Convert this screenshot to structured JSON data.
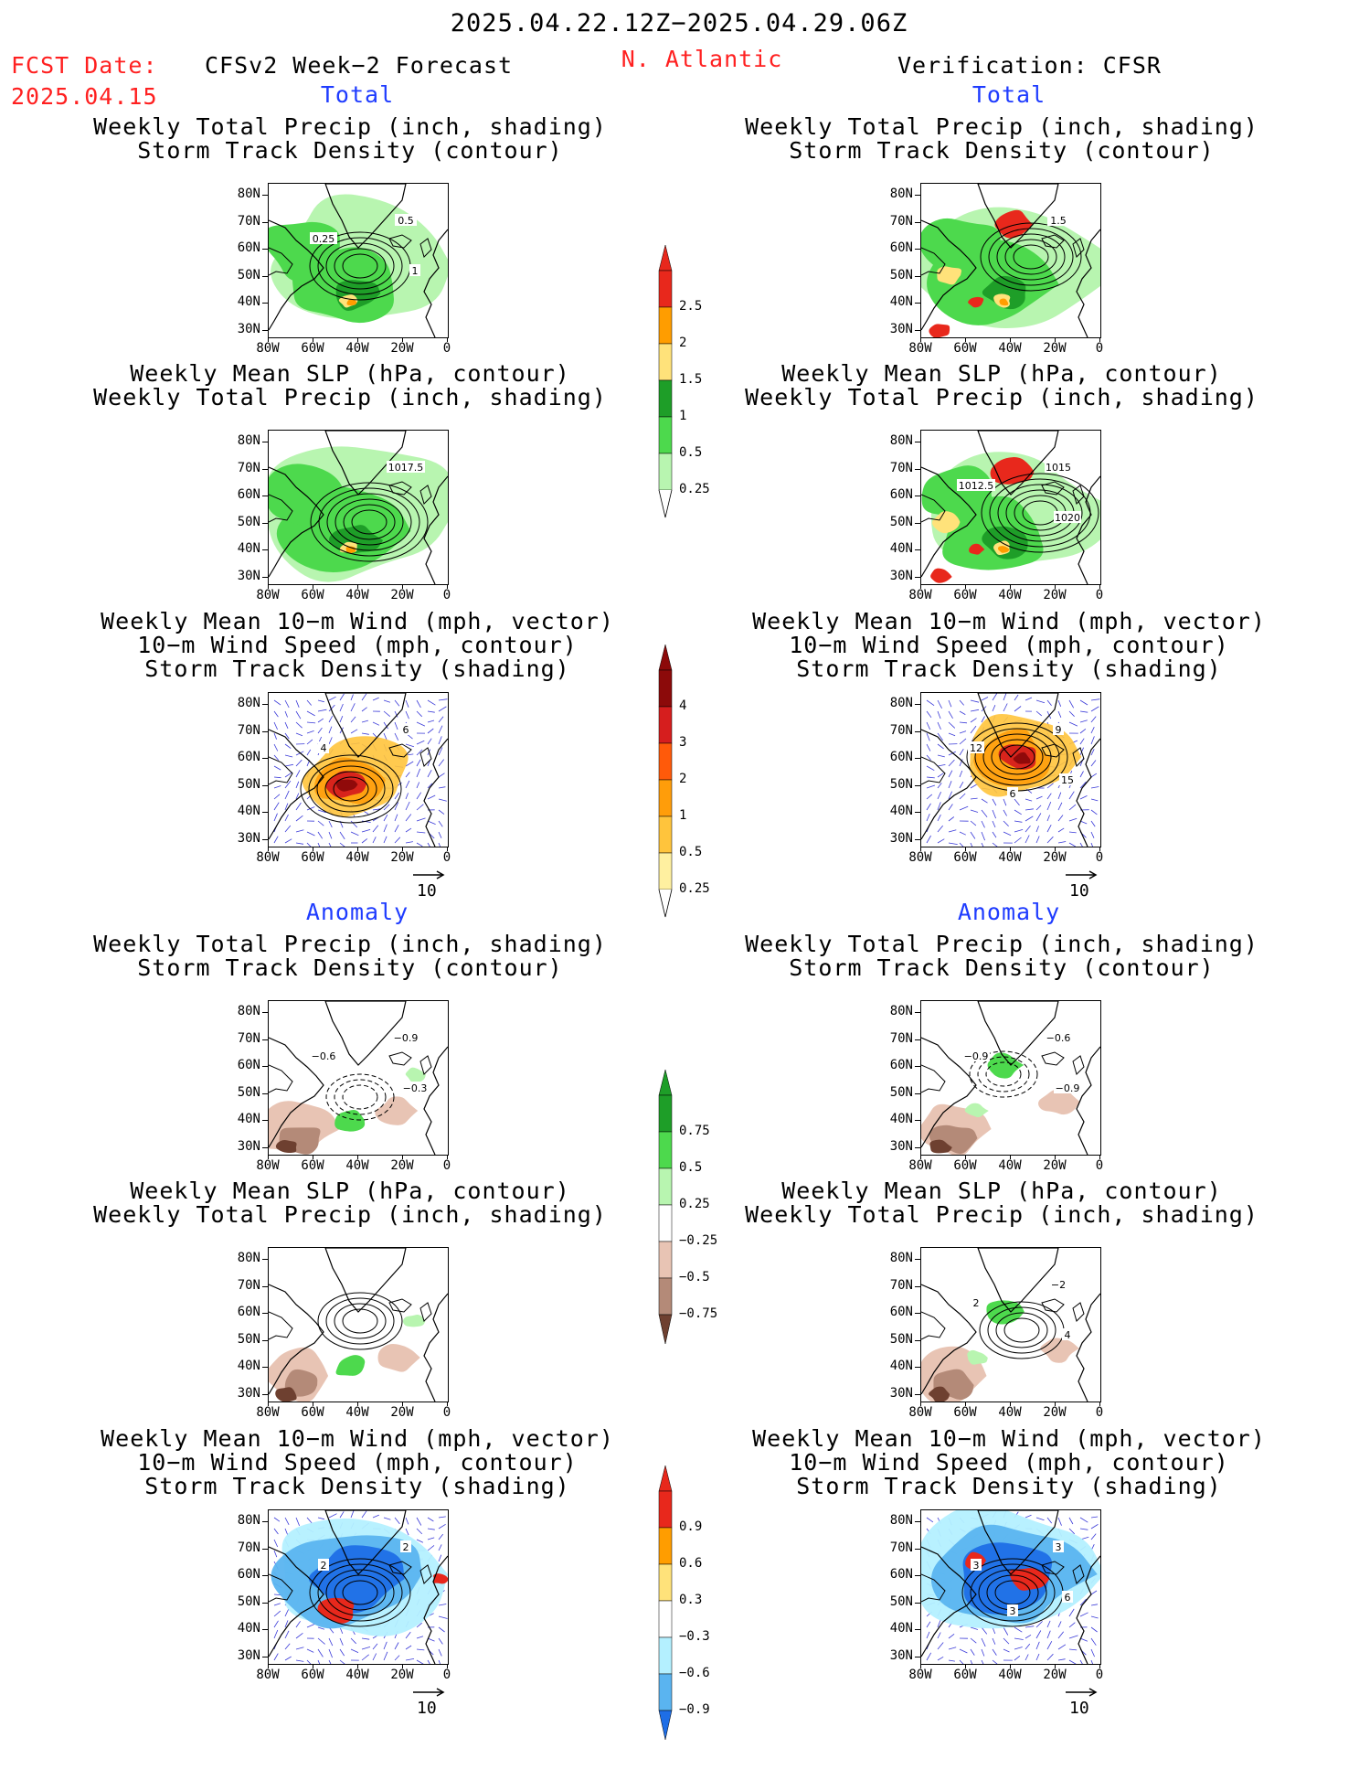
{
  "header": {
    "date_range": "2025.04.22.12Z−2025.04.29.06Z",
    "fcst_label": "FCST Date:",
    "fcst_date": "2025.04.15",
    "model": "CFSv2 Week−2 Forecast",
    "region": "N. Atlantic",
    "verification": "Verification: CFSR"
  },
  "sections": {
    "total": "Total",
    "anomaly": "Anomaly"
  },
  "titles": {
    "precip_track": "Weekly Total Precip (inch, shading)\nStorm Track Density (contour)",
    "slp_precip": "Weekly Mean SLP (hPa, contour)\nWeekly Total Precip (inch, shading)",
    "wind_track": "Weekly Mean 10−m Wind (mph, vector)\n10−m Wind Speed (mph, contour)\nStorm Track Density (shading)"
  },
  "axes": {
    "lat_labels": [
      "80N",
      "70N",
      "60N",
      "50N",
      "40N",
      "30N"
    ],
    "lon_labels": [
      "80W",
      "60W",
      "40W",
      "20W",
      "0"
    ]
  },
  "vector_ref": "10",
  "colorbars": {
    "precip_total": {
      "labels": [
        "2.5",
        "2",
        "1.5",
        "1",
        "0.5",
        "0.25"
      ],
      "colors": [
        "#e8281c",
        "#ff9d00",
        "#ffe27a",
        "#1e9e28",
        "#4dd94d",
        "#b8f5b0"
      ]
    },
    "track_total": {
      "labels": [
        "4",
        "3",
        "2",
        "1",
        "0.5",
        "0.25"
      ],
      "colors": [
        "#8c0a0a",
        "#d61e1e",
        "#ff5a0a",
        "#ff9d0a",
        "#ffc43c",
        "#fff0a0"
      ]
    },
    "precip_anom": {
      "labels": [
        "0.75",
        "0.5",
        "0.25",
        "−0.25",
        "−0.5",
        "−0.75"
      ],
      "colors": [
        "#1e9e28",
        "#4dd94d",
        "#b8f5b0",
        "#ffffff",
        "#e8c4b4",
        "#b48a78",
        "#6e4030"
      ]
    },
    "track_anom": {
      "labels": [
        "0.9",
        "0.6",
        "0.3",
        "−0.3",
        "−0.6",
        "−0.9"
      ],
      "colors": [
        "#e8281c",
        "#ff9d00",
        "#ffe27a",
        "#ffffff",
        "#b4f0ff",
        "#5ab4f0",
        "#1e6ee6"
      ]
    }
  },
  "map_labels": {
    "r1l": [
      "0.5",
      "0.25",
      "1"
    ],
    "r1r": [
      "1.5"
    ],
    "r2l": [
      "1017.5"
    ],
    "r2r": [
      "1015",
      "1012.5",
      "1020"
    ],
    "r3l": [
      "6",
      "4"
    ],
    "r3r": [
      "9",
      "12",
      "15",
      "6"
    ],
    "r4l": [
      "−0.9",
      "−0.6",
      "−0.3"
    ],
    "r4r": [
      "−0.6",
      "−0.9",
      "−0.9"
    ],
    "r5l": [],
    "r5r": [
      "−2",
      "2",
      "4"
    ],
    "r6l": [
      "2",
      "2"
    ],
    "r6r": [
      "3",
      "3",
      "6",
      "3"
    ]
  }
}
